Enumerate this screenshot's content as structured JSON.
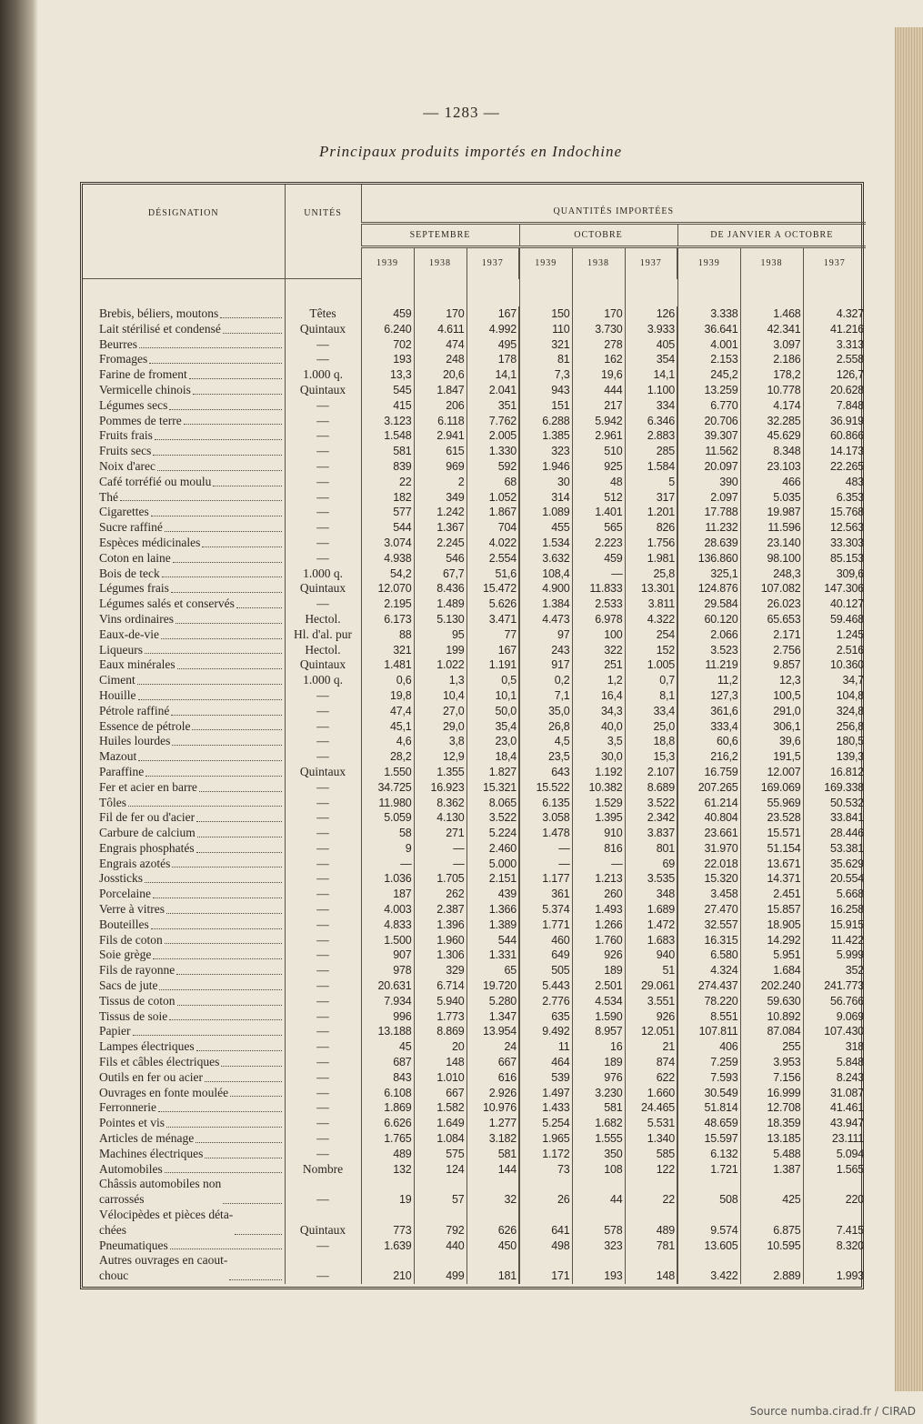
{
  "page_number": "— 1283 —",
  "title": "Principaux produits importés en Indochine",
  "source": "Source numba.cirad.fr / CIRAD",
  "table": {
    "headers": {
      "designation": "DÉSIGNATION",
      "units": "UNITÉS",
      "group": "QUANTITÉS IMPORTÉES",
      "periods": [
        "SEPTEMBRE",
        "OCTOBRE",
        "DE JANVIER A OCTOBRE"
      ],
      "years": [
        "1939",
        "1938",
        "1937",
        "1939",
        "1938",
        "1937",
        "1939",
        "1938",
        "1937"
      ]
    },
    "rows": [
      {
        "name": "Brebis, béliers, moutons",
        "unit": "Têtes",
        "values": [
          "459",
          "170",
          "167",
          "150",
          "170",
          "126",
          "3.338",
          "1.468",
          "4.327"
        ]
      },
      {
        "name": "Lait stérilisé et condensé",
        "unit": "Quintaux",
        "values": [
          "6.240",
          "4.611",
          "4.992",
          "110",
          "3.730",
          "3.933",
          "36.641",
          "42.341",
          "41.216"
        ]
      },
      {
        "name": "Beurres",
        "unit": "—",
        "values": [
          "702",
          "474",
          "495",
          "321",
          "278",
          "405",
          "4.001",
          "3.097",
          "3.313"
        ]
      },
      {
        "name": "Fromages",
        "unit": "—",
        "values": [
          "193",
          "248",
          "178",
          "81",
          "162",
          "354",
          "2.153",
          "2.186",
          "2.558"
        ]
      },
      {
        "name": "Farine de froment",
        "unit": "1.000 q.",
        "values": [
          "13,3",
          "20,6",
          "14,1",
          "7,3",
          "19,6",
          "14,1",
          "245,2",
          "178,2",
          "126,7"
        ]
      },
      {
        "name": "Vermicelle chinois",
        "unit": "Quintaux",
        "values": [
          "545",
          "1.847",
          "2.041",
          "943",
          "444",
          "1.100",
          "13.259",
          "10.778",
          "20.628"
        ]
      },
      {
        "name": "Légumes secs",
        "unit": "—",
        "values": [
          "415",
          "206",
          "351",
          "151",
          "217",
          "334",
          "6.770",
          "4.174",
          "7.848"
        ]
      },
      {
        "name": "Pommes de terre",
        "unit": "—",
        "values": [
          "3.123",
          "6.118",
          "7.762",
          "6.288",
          "5.942",
          "6.346",
          "20.706",
          "32.285",
          "36.919"
        ]
      },
      {
        "name": "Fruits frais",
        "unit": "—",
        "values": [
          "1.548",
          "2.941",
          "2.005",
          "1.385",
          "2.961",
          "2.883",
          "39.307",
          "45.629",
          "60.866"
        ]
      },
      {
        "name": "Fruits secs",
        "unit": "—",
        "values": [
          "581",
          "615",
          "1.330",
          "323",
          "510",
          "285",
          "11.562",
          "8.348",
          "14.173"
        ]
      },
      {
        "name": "Noix d'arec",
        "unit": "—",
        "values": [
          "839",
          "969",
          "592",
          "1.946",
          "925",
          "1.584",
          "20.097",
          "23.103",
          "22.265"
        ]
      },
      {
        "name": "Café torréfié ou moulu",
        "unit": "—",
        "values": [
          "22",
          "2",
          "68",
          "30",
          "48",
          "5",
          "390",
          "466",
          "483"
        ]
      },
      {
        "name": "Thé",
        "unit": "—",
        "values": [
          "182",
          "349",
          "1.052",
          "314",
          "512",
          "317",
          "2.097",
          "5.035",
          "6.353"
        ]
      },
      {
        "name": "Cigarettes",
        "unit": "—",
        "values": [
          "577",
          "1.242",
          "1.867",
          "1.089",
          "1.401",
          "1.201",
          "17.788",
          "19.987",
          "15.768"
        ]
      },
      {
        "name": "Sucre raffiné",
        "unit": "—",
        "values": [
          "544",
          "1.367",
          "704",
          "455",
          "565",
          "826",
          "11.232",
          "11.596",
          "12.563"
        ]
      },
      {
        "name": "Espèces médicinales",
        "unit": "—",
        "values": [
          "3.074",
          "2.245",
          "4.022",
          "1.534",
          "2.223",
          "1.756",
          "28.639",
          "23.140",
          "33.303"
        ]
      },
      {
        "name": "Coton en laine",
        "unit": "—",
        "values": [
          "4.938",
          "546",
          "2.554",
          "3.632",
          "459",
          "1.981",
          "136.860",
          "98.100",
          "85.153"
        ]
      },
      {
        "name": "Bois de teck",
        "unit": "1.000 q.",
        "values": [
          "54,2",
          "67,7",
          "51,6",
          "108,4",
          "—",
          "25,8",
          "325,1",
          "248,3",
          "309,6"
        ]
      },
      {
        "name": "Légumes frais",
        "unit": "Quintaux",
        "values": [
          "12.070",
          "8.436",
          "15.472",
          "4.900",
          "11.833",
          "13.301",
          "124.876",
          "107.082",
          "147.306"
        ]
      },
      {
        "name": "Légumes salés et conservés",
        "unit": "—",
        "values": [
          "2.195",
          "1.489",
          "5.626",
          "1.384",
          "2.533",
          "3.811",
          "29.584",
          "26.023",
          "40.127"
        ]
      },
      {
        "name": "Vins ordinaires",
        "unit": "Hectol.",
        "values": [
          "6.173",
          "5.130",
          "3.471",
          "4.473",
          "6.978",
          "4.322",
          "60.120",
          "65.653",
          "59.468"
        ]
      },
      {
        "name": "Eaux-de-vie",
        "unit": "Hl. d'al. pur",
        "values": [
          "88",
          "95",
          "77",
          "97",
          "100",
          "254",
          "2.066",
          "2.171",
          "1.245"
        ]
      },
      {
        "name": "Liqueurs",
        "unit": "Hectol.",
        "values": [
          "321",
          "199",
          "167",
          "243",
          "322",
          "152",
          "3.523",
          "2.756",
          "2.516"
        ]
      },
      {
        "name": "Eaux minérales",
        "unit": "Quintaux",
        "values": [
          "1.481",
          "1.022",
          "1.191",
          "917",
          "251",
          "1.005",
          "11.219",
          "9.857",
          "10.360"
        ]
      },
      {
        "name": "Ciment",
        "unit": "1.000 q.",
        "values": [
          "0,6",
          "1,3",
          "0,5",
          "0,2",
          "1,2",
          "0,7",
          "11,2",
          "12,3",
          "34,7"
        ]
      },
      {
        "name": "Houille",
        "unit": "—",
        "values": [
          "19,8",
          "10,4",
          "10,1",
          "7,1",
          "16,4",
          "8,1",
          "127,3",
          "100,5",
          "104,8"
        ]
      },
      {
        "name": "Pétrole raffiné",
        "unit": "—",
        "values": [
          "47,4",
          "27,0",
          "50,0",
          "35,0",
          "34,3",
          "33,4",
          "361,6",
          "291,0",
          "324,8"
        ]
      },
      {
        "name": "Essence de pétrole",
        "unit": "—",
        "values": [
          "45,1",
          "29,0",
          "35,4",
          "26,8",
          "40,0",
          "25,0",
          "333,4",
          "306,1",
          "256,8"
        ]
      },
      {
        "name": "Huiles lourdes",
        "unit": "—",
        "values": [
          "4,6",
          "3,8",
          "23,0",
          "4,5",
          "3,5",
          "18,8",
          "60,6",
          "39,6",
          "180,5"
        ]
      },
      {
        "name": "Mazout",
        "unit": "—",
        "values": [
          "28,2",
          "12,9",
          "18,4",
          "23,5",
          "30,0",
          "15,3",
          "216,2",
          "191,5",
          "139,3"
        ]
      },
      {
        "name": "Paraffine",
        "unit": "Quintaux",
        "values": [
          "1.550",
          "1.355",
          "1.827",
          "643",
          "1.192",
          "2.107",
          "16.759",
          "12.007",
          "16.812"
        ]
      },
      {
        "name": "Fer et acier en barre",
        "unit": "—",
        "values": [
          "34.725",
          "16.923",
          "15.321",
          "15.522",
          "10.382",
          "8.689",
          "207.265",
          "169.069",
          "169.338"
        ]
      },
      {
        "name": "Tôles",
        "unit": "—",
        "values": [
          "11.980",
          "8.362",
          "8.065",
          "6.135",
          "1.529",
          "3.522",
          "61.214",
          "55.969",
          "50.532"
        ]
      },
      {
        "name": "Fil de fer ou d'acier",
        "unit": "—",
        "values": [
          "5.059",
          "4.130",
          "3.522",
          "3.058",
          "1.395",
          "2.342",
          "40.804",
          "23.528",
          "33.841"
        ]
      },
      {
        "name": "Carbure de calcium",
        "unit": "—",
        "values": [
          "58",
          "271",
          "5.224",
          "1.478",
          "910",
          "3.837",
          "23.661",
          "15.571",
          "28.446"
        ]
      },
      {
        "name": "Engrais phosphatés",
        "unit": "—",
        "values": [
          "9",
          "—",
          "2.460",
          "—",
          "816",
          "801",
          "31.970",
          "51.154",
          "53.381"
        ]
      },
      {
        "name": "Engrais azotés",
        "unit": "—",
        "values": [
          "—",
          "—",
          "5.000",
          "—",
          "—",
          "69",
          "22.018",
          "13.671",
          "35.629"
        ]
      },
      {
        "name": "Jossticks",
        "unit": "—",
        "values": [
          "1.036",
          "1.705",
          "2.151",
          "1.177",
          "1.213",
          "3.535",
          "15.320",
          "14.371",
          "20.554"
        ]
      },
      {
        "name": "Porcelaine",
        "unit": "—",
        "values": [
          "187",
          "262",
          "439",
          "361",
          "260",
          "348",
          "3.458",
          "2.451",
          "5.668"
        ]
      },
      {
        "name": "Verre à vitres",
        "unit": "—",
        "values": [
          "4.003",
          "2.387",
          "1.366",
          "5.374",
          "1.493",
          "1.689",
          "27.470",
          "15.857",
          "16.258"
        ]
      },
      {
        "name": "Bouteilles",
        "unit": "—",
        "values": [
          "4.833",
          "1.396",
          "1.389",
          "1.771",
          "1.266",
          "1.472",
          "32.557",
          "18.905",
          "15.915"
        ]
      },
      {
        "name": "Fils de coton",
        "unit": "—",
        "values": [
          "1.500",
          "1.960",
          "544",
          "460",
          "1.760",
          "1.683",
          "16.315",
          "14.292",
          "11.422"
        ]
      },
      {
        "name": "Soie grège",
        "unit": "—",
        "values": [
          "907",
          "1.306",
          "1.331",
          "649",
          "926",
          "940",
          "6.580",
          "5.951",
          "5.999"
        ]
      },
      {
        "name": "Fils de rayonne",
        "unit": "—",
        "values": [
          "978",
          "329",
          "65",
          "505",
          "189",
          "51",
          "4.324",
          "1.684",
          "352"
        ]
      },
      {
        "name": "Sacs de jute",
        "unit": "—",
        "values": [
          "20.631",
          "6.714",
          "19.720",
          "5.443",
          "2.501",
          "29.061",
          "274.437",
          "202.240",
          "241.773"
        ]
      },
      {
        "name": "Tissus de coton",
        "unit": "—",
        "values": [
          "7.934",
          "5.940",
          "5.280",
          "2.776",
          "4.534",
          "3.551",
          "78.220",
          "59.630",
          "56.766"
        ]
      },
      {
        "name": "Tissus de soie",
        "unit": "—",
        "values": [
          "996",
          "1.773",
          "1.347",
          "635",
          "1.590",
          "926",
          "8.551",
          "10.892",
          "9.069"
        ]
      },
      {
        "name": "Papier",
        "unit": "—",
        "values": [
          "13.188",
          "8.869",
          "13.954",
          "9.492",
          "8.957",
          "12.051",
          "107.811",
          "87.084",
          "107.430"
        ]
      },
      {
        "name": "Lampes électriques",
        "unit": "—",
        "values": [
          "45",
          "20",
          "24",
          "11",
          "16",
          "21",
          "406",
          "255",
          "318"
        ]
      },
      {
        "name": "Fils et câbles électriques",
        "unit": "—",
        "values": [
          "687",
          "148",
          "667",
          "464",
          "189",
          "874",
          "7.259",
          "3.953",
          "5.848"
        ]
      },
      {
        "name": "Outils en fer ou acier",
        "unit": "—",
        "values": [
          "843",
          "1.010",
          "616",
          "539",
          "976",
          "622",
          "7.593",
          "7.156",
          "8.243"
        ]
      },
      {
        "name": "Ouvrages en fonte moulée",
        "unit": "—",
        "values": [
          "6.108",
          "667",
          "2.926",
          "1.497",
          "3.230",
          "1.660",
          "30.549",
          "16.999",
          "31.087"
        ]
      },
      {
        "name": "Ferronnerie",
        "unit": "—",
        "values": [
          "1.869",
          "1.582",
          "10.976",
          "1.433",
          "581",
          "24.465",
          "51.814",
          "12.708",
          "41.461"
        ]
      },
      {
        "name": "Pointes et vis",
        "unit": "—",
        "values": [
          "6.626",
          "1.649",
          "1.277",
          "5.254",
          "1.682",
          "5.531",
          "48.659",
          "18.359",
          "43.947"
        ]
      },
      {
        "name": "Articles de ménage",
        "unit": "—",
        "values": [
          "1.765",
          "1.084",
          "3.182",
          "1.965",
          "1.555",
          "1.340",
          "15.597",
          "13.185",
          "23.111"
        ]
      },
      {
        "name": "Machines électriques",
        "unit": "—",
        "values": [
          "489",
          "575",
          "581",
          "1.172",
          "350",
          "585",
          "6.132",
          "5.488",
          "5.094"
        ]
      },
      {
        "name": "Automobiles",
        "unit": "Nombre",
        "values": [
          "132",
          "124",
          "144",
          "73",
          "108",
          "122",
          "1.721",
          "1.387",
          "1.565"
        ]
      },
      {
        "name": "Châssis automobiles non\n   carrossés",
        "unit": "—",
        "values": [
          "19",
          "57",
          "32",
          "26",
          "44",
          "22",
          "508",
          "425",
          "220"
        ]
      },
      {
        "name": "Vélocipèdes et pièces déta-\n   chées",
        "unit": "Quintaux",
        "values": [
          "773",
          "792",
          "626",
          "641",
          "578",
          "489",
          "9.574",
          "6.875",
          "7.415"
        ]
      },
      {
        "name": "Pneumatiques",
        "unit": "—",
        "values": [
          "1.639",
          "440",
          "450",
          "498",
          "323",
          "781",
          "13.605",
          "10.595",
          "8.320"
        ]
      },
      {
        "name": "Autres ouvrages en caout-\n   chouc",
        "unit": "—",
        "values": [
          "210",
          "499",
          "181",
          "171",
          "193",
          "148",
          "3.422",
          "2.889",
          "1.993"
        ]
      }
    ]
  }
}
